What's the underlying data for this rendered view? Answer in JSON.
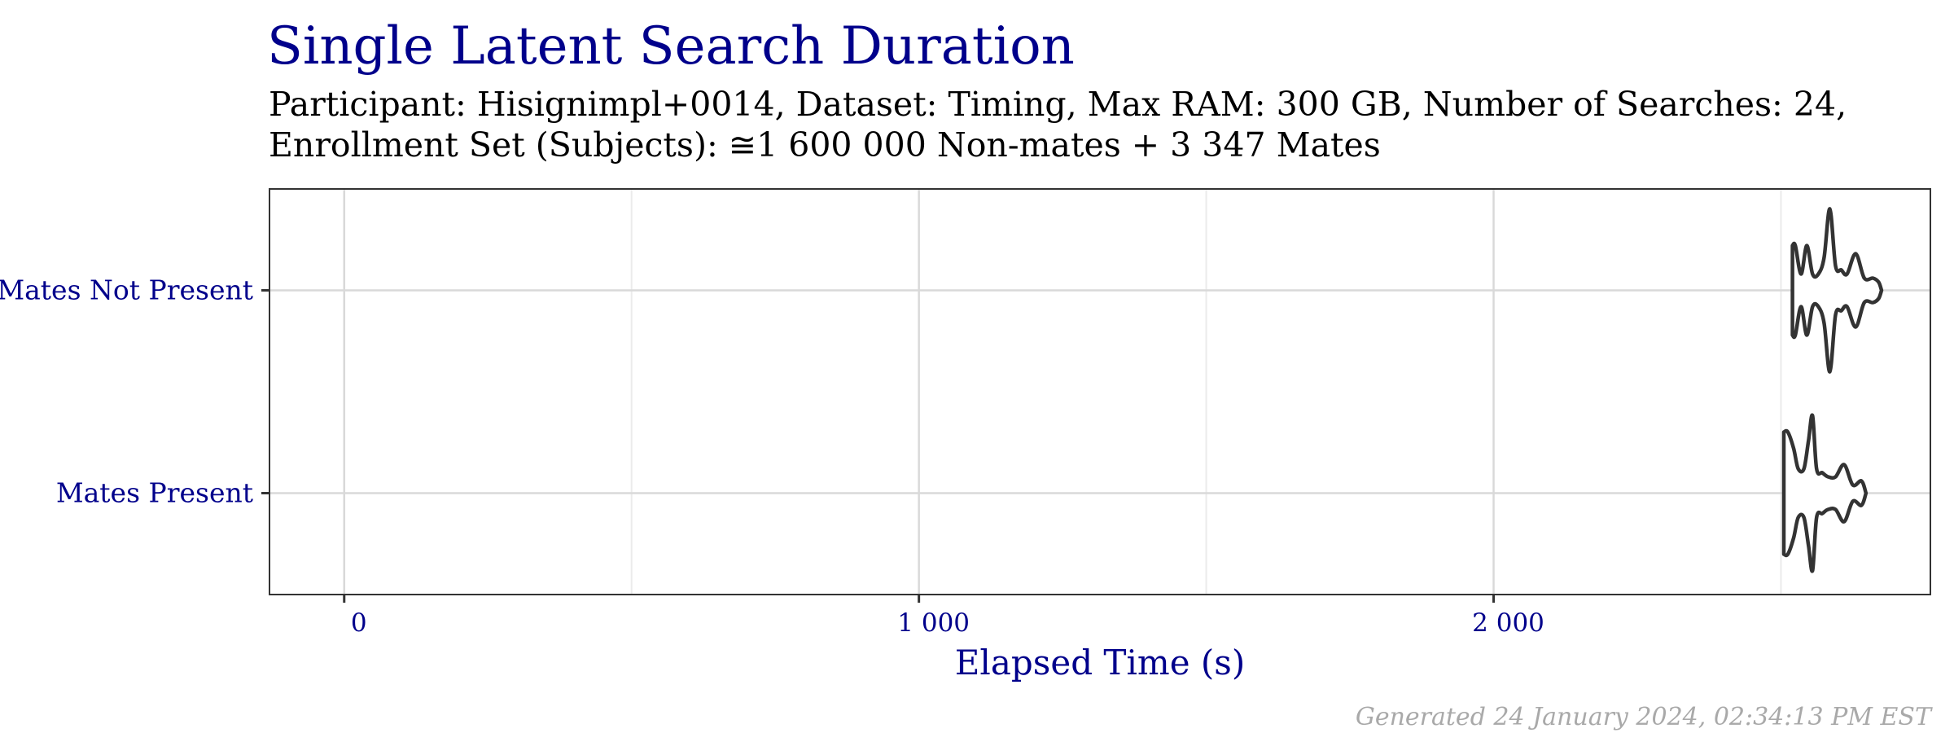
{
  "chart_data": {
    "type": "violin",
    "title": "Single Latent Search Duration",
    "subtitle_lines": [
      "Participant: Hisignimpl+0014, Dataset: Timing, Max RAM: 300 GB, Number of Searches: 24,",
      "Enrollment Set (Subjects): ≅1 600 000 Non-mates + 3 347 Mates"
    ],
    "xlabel": "Elapsed Time (s)",
    "ylabel": "",
    "xlim": [
      -130,
      2760
    ],
    "x_ticks": [
      0,
      1000,
      2000
    ],
    "x_tick_labels": [
      "0",
      "1 000",
      "2 000"
    ],
    "x_minor_ticks": [
      500,
      1500,
      2500
    ],
    "categories": [
      "Mates Not Present",
      "Mates Present"
    ],
    "grid": true,
    "caption": "Generated 24 January 2024, 02:34:13 PM EST",
    "colors": {
      "title": "#00008b",
      "text": "#000000",
      "outline": "#333333",
      "grid": "#d9d9d9",
      "caption": "#a9a9a9"
    },
    "series": [
      {
        "category": "Mates Not Present",
        "profile": [
          [
            2520,
            0.55
          ],
          [
            2525,
            0.55
          ],
          [
            2535,
            0.2
          ],
          [
            2545,
            0.55
          ],
          [
            2555,
            0.2
          ],
          [
            2565,
            0.2
          ],
          [
            2575,
            0.4
          ],
          [
            2585,
            1.0
          ],
          [
            2595,
            0.3
          ],
          [
            2605,
            0.25
          ],
          [
            2615,
            0.2
          ],
          [
            2630,
            0.45
          ],
          [
            2645,
            0.15
          ],
          [
            2660,
            0.15
          ],
          [
            2670,
            0.1
          ],
          [
            2675,
            0.0
          ]
        ]
      },
      {
        "category": "Mates Present",
        "profile": [
          [
            2505,
            0.75
          ],
          [
            2512,
            0.75
          ],
          [
            2522,
            0.55
          ],
          [
            2530,
            0.3
          ],
          [
            2540,
            0.3
          ],
          [
            2548,
            0.65
          ],
          [
            2555,
            0.95
          ],
          [
            2562,
            0.3
          ],
          [
            2572,
            0.25
          ],
          [
            2582,
            0.2
          ],
          [
            2595,
            0.2
          ],
          [
            2610,
            0.35
          ],
          [
            2625,
            0.1
          ],
          [
            2640,
            0.15
          ],
          [
            2648,
            0.0
          ]
        ]
      }
    ]
  }
}
